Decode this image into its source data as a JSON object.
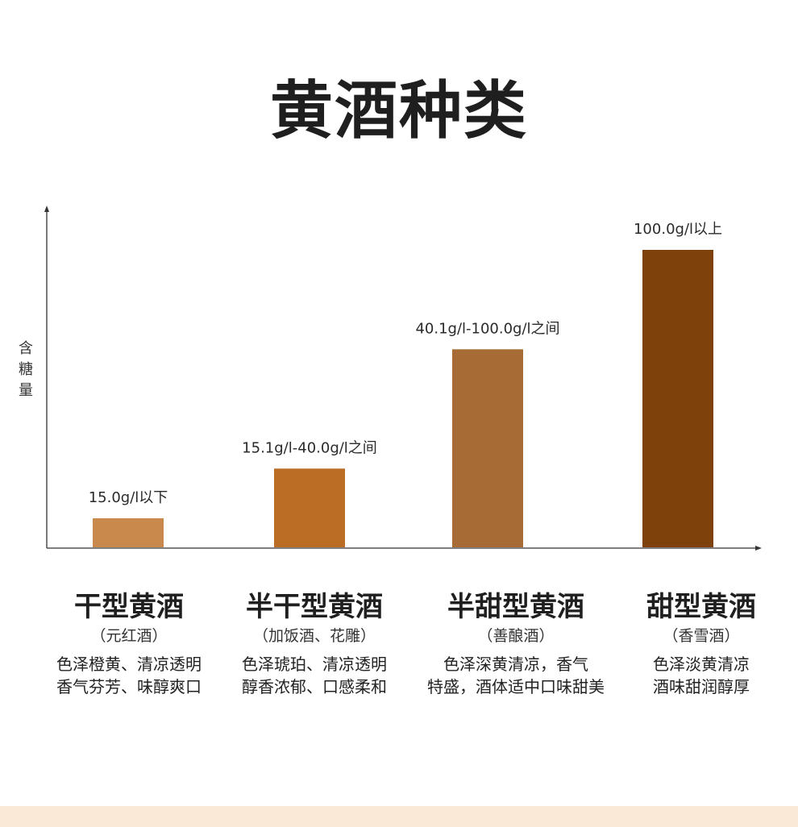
{
  "page_title": "黄酒种类",
  "chart_data": {
    "type": "bar",
    "title": "黄酒种类",
    "ylabel": "含糖量",
    "xlabel": "",
    "categories": [
      "干型黄酒",
      "半干型黄酒",
      "半甜型黄酒",
      "甜型黄酒"
    ],
    "values": [
      15.0,
      40.0,
      100.0,
      150.0
    ],
    "data_labels": [
      "15.0g/l以下",
      "15.1g/l-40.0g/l之间",
      "40.1g/l-100.0g/l之间",
      "100.0g/l以上"
    ],
    "colors": [
      "#c9884c",
      "#bb6d25",
      "#a76b35",
      "#7e410b"
    ],
    "axis_color": "#333333",
    "grid": false,
    "legend": "none"
  },
  "categories_info": [
    {
      "name": "干型黄酒",
      "alias": "（元红酒）",
      "desc": [
        "色泽橙黄、清凉透明",
        "香气芬芳、味醇爽口"
      ]
    },
    {
      "name": "半干型黄酒",
      "alias": "（加饭酒、花雕）",
      "desc": [
        "色泽琥珀、清凉透明",
        "醇香浓郁、口感柔和"
      ]
    },
    {
      "name": "半甜型黄酒",
      "alias": "（善酿酒）",
      "desc": [
        "色泽深黄清凉，香气",
        "特盛，酒体适中口味甜美"
      ]
    },
    {
      "name": "甜型黄酒",
      "alias": "（香雪酒）",
      "desc": [
        "色泽淡黄清凉",
        "酒味甜润醇厚"
      ]
    }
  ],
  "colors": {
    "bottom_band": "#fbe9d8"
  }
}
